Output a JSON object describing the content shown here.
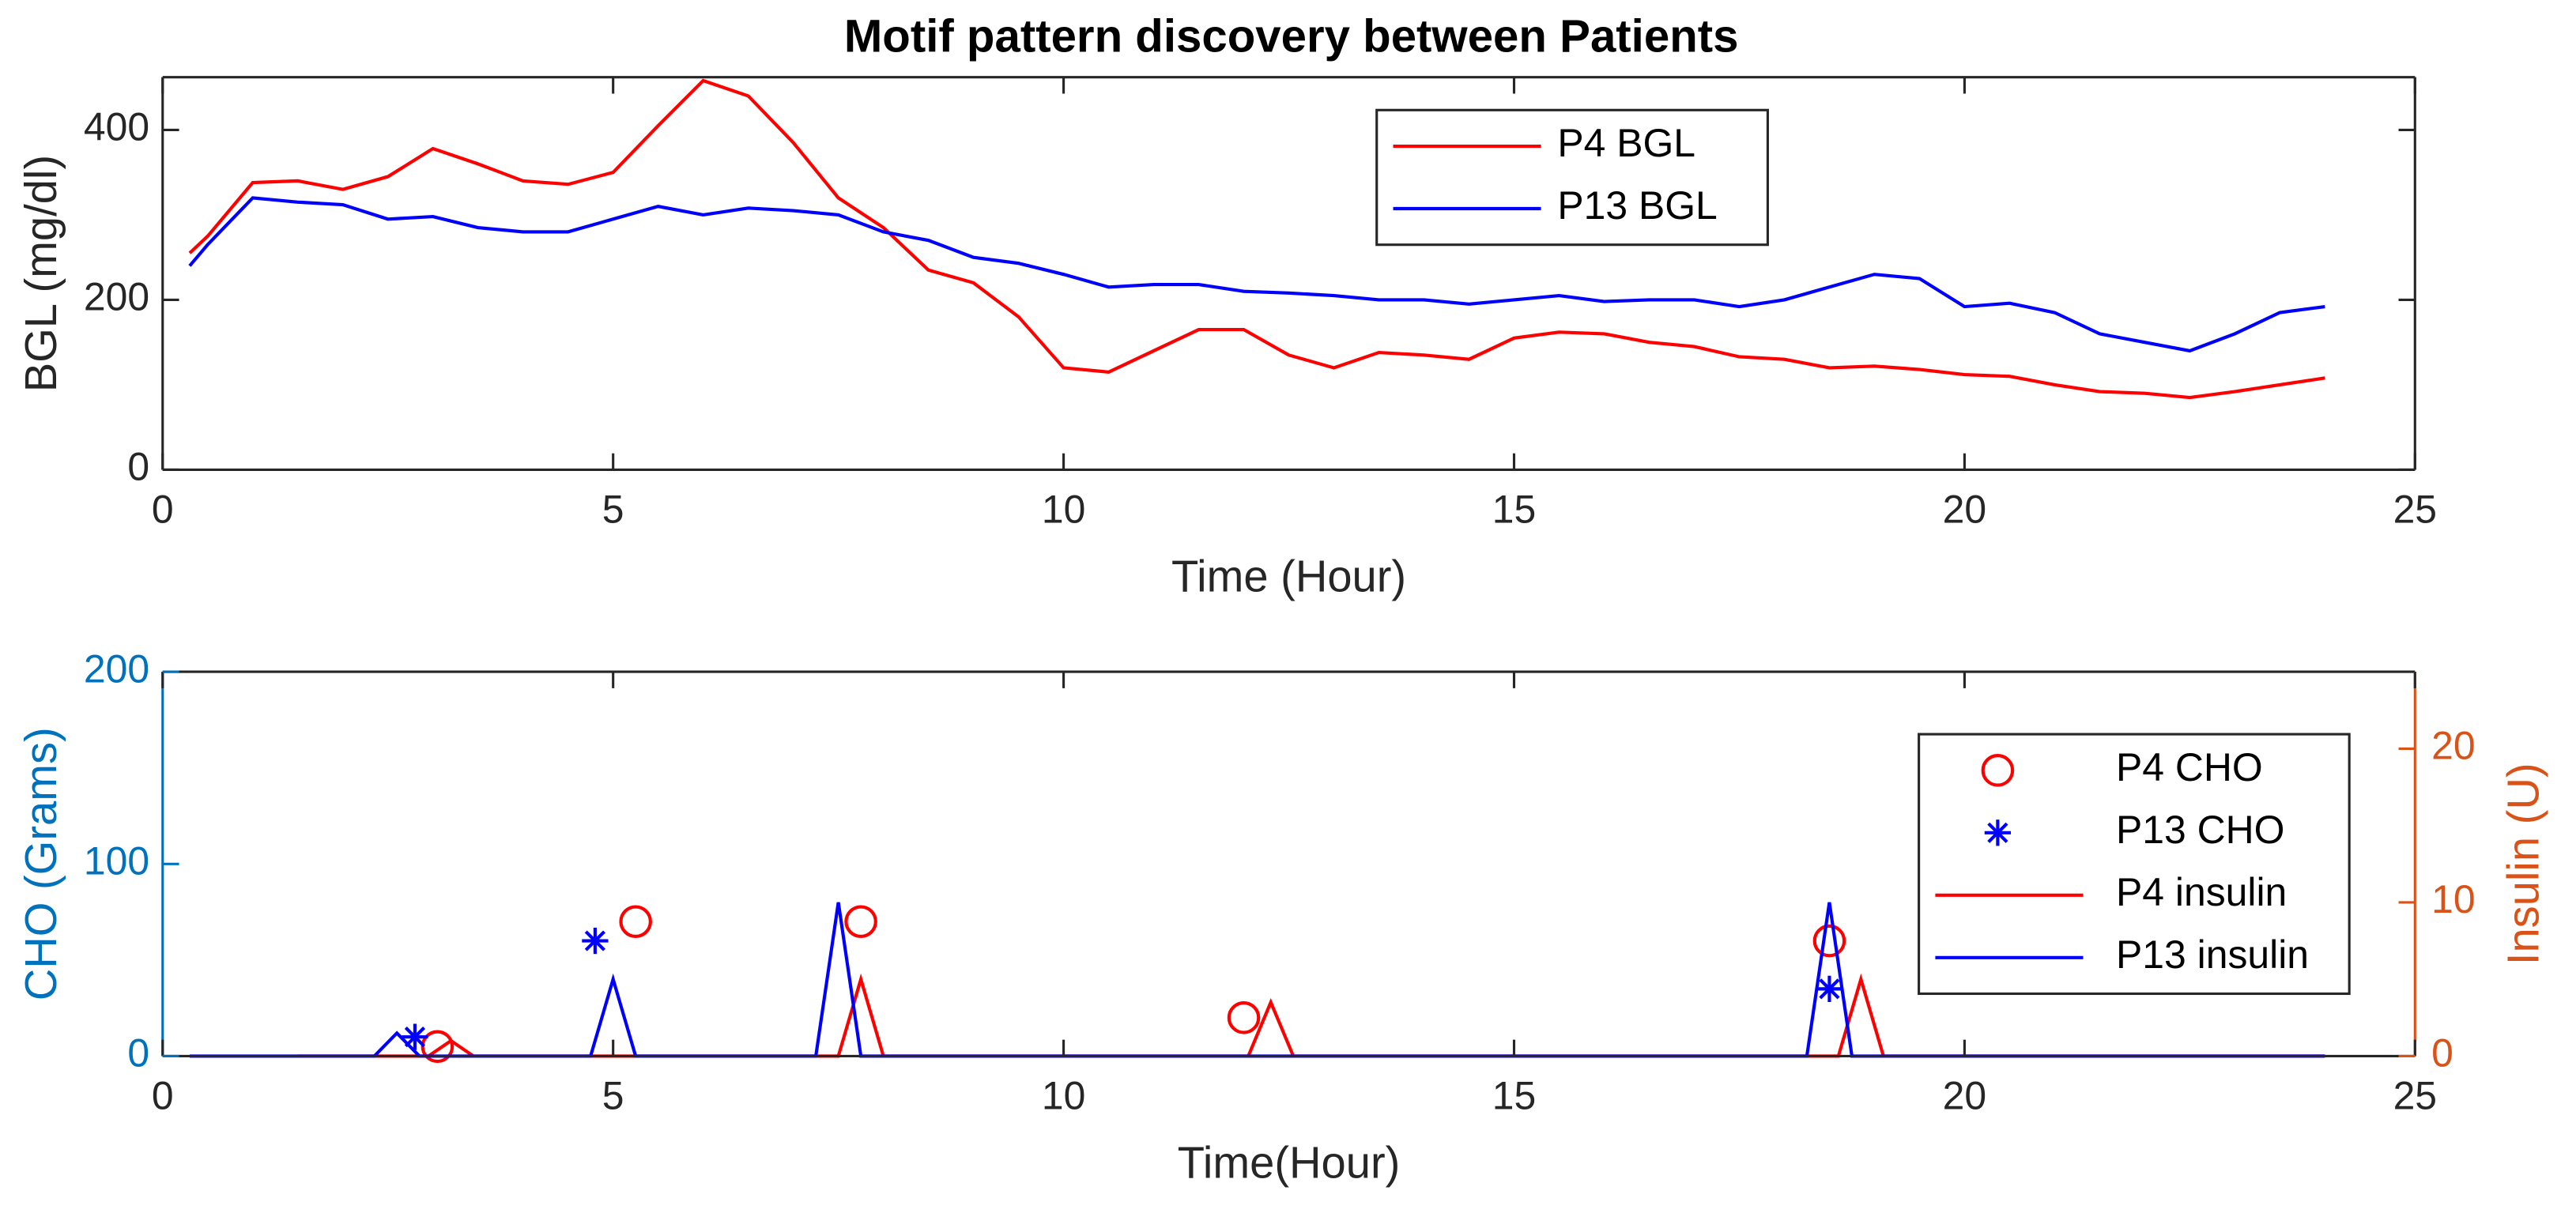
{
  "chart_data": [
    {
      "type": "line",
      "title": "Motif pattern discovery between Patients",
      "x_label": "Time (Hour)",
      "y_label": "BGL (mg/dl)",
      "x": [
        0.3,
        0.5,
        1,
        1.5,
        2,
        2.5,
        3,
        3.5,
        4,
        4.5,
        5,
        5.5,
        6,
        6.5,
        7,
        7.5,
        8,
        8.5,
        9,
        9.5,
        10,
        10.5,
        11,
        11.5,
        12,
        12.5,
        13,
        13.5,
        14,
        14.5,
        15,
        15.5,
        16,
        16.5,
        17,
        17.5,
        18,
        18.5,
        19,
        19.5,
        20,
        20.5,
        21,
        21.5,
        22,
        22.5,
        23,
        23.5,
        24
      ],
      "series": [
        {
          "name": "P4 BGL",
          "color": "#ff0000",
          "values": [
            255,
            275,
            338,
            340,
            330,
            345,
            378,
            360,
            340,
            336,
            350,
            405,
            458,
            440,
            385,
            320,
            285,
            235,
            220,
            180,
            120,
            115,
            140,
            165,
            165,
            135,
            120,
            138,
            135,
            130,
            155,
            162,
            160,
            150,
            145,
            133,
            130,
            120,
            122,
            118,
            112,
            110,
            100,
            92,
            90,
            85,
            92,
            100,
            108
          ]
        },
        {
          "name": "P13 BGL",
          "color": "#0000ff",
          "values": [
            240,
            265,
            320,
            315,
            312,
            295,
            298,
            285,
            280,
            280,
            295,
            310,
            300,
            308,
            305,
            300,
            280,
            270,
            250,
            243,
            230,
            215,
            218,
            218,
            210,
            208,
            205,
            200,
            200,
            195,
            200,
            205,
            198,
            200,
            200,
            192,
            200,
            215,
            230,
            225,
            192,
            196,
            185,
            160,
            150,
            140,
            160,
            185,
            192
          ]
        }
      ],
      "xlim": [
        0,
        25
      ],
      "xticks": [
        0,
        5,
        10,
        15,
        20,
        25
      ],
      "ylim": [
        0,
        462
      ],
      "yticks": [
        0,
        200,
        400
      ],
      "legend": "north"
    },
    {
      "type": "scatter",
      "x_label": "Time(Hour)",
      "y_label": "CHO (Grams)",
      "y2_label": "Insulin (U)",
      "ycolor": "#0072bd",
      "y2color": "#d95319",
      "series": [
        {
          "name": "P4 CHO",
          "color": "#ff0000",
          "marker": "o",
          "x": [
            3.05,
            5.25,
            7.75,
            12.0,
            18.5
          ],
          "values": [
            5,
            70,
            70,
            20,
            60
          ]
        },
        {
          "name": "P13 CHO",
          "color": "#0000ff",
          "marker": "*",
          "x": [
            2.8,
            4.8,
            18.5
          ],
          "values": [
            10,
            60,
            35
          ]
        },
        {
          "name": "P4 insulin",
          "color": "#ff0000",
          "marker": "line",
          "axis": "y2",
          "x": [
            1.5,
            2.95,
            3.2,
            3.45,
            7.5,
            7.75,
            8.0,
            12.05,
            12.3,
            12.55,
            18.6,
            18.85,
            19.1,
            24
          ],
          "values": [
            0,
            0,
            1,
            0,
            0,
            5,
            0,
            0,
            3.5,
            0,
            0,
            5,
            0,
            0
          ]
        },
        {
          "name": "P13 insulin",
          "color": "#0000ff",
          "marker": "line",
          "axis": "y2",
          "x": [
            0.3,
            2.35,
            2.6,
            2.85,
            4.75,
            5.0,
            5.25,
            7.25,
            7.5,
            7.75,
            18.25,
            18.5,
            18.75,
            24
          ],
          "values": [
            0,
            0,
            1.5,
            0,
            0,
            5,
            0,
            0,
            10,
            0,
            0,
            10,
            0,
            0
          ]
        }
      ],
      "xlim": [
        0,
        25
      ],
      "xticks": [
        0,
        5,
        10,
        15,
        20,
        25
      ],
      "ylim": [
        0,
        200
      ],
      "yticks": [
        0,
        100,
        200
      ],
      "y2lim": [
        0,
        25
      ],
      "y2ticks": [
        0,
        10,
        20
      ],
      "legend": "northeast"
    }
  ]
}
